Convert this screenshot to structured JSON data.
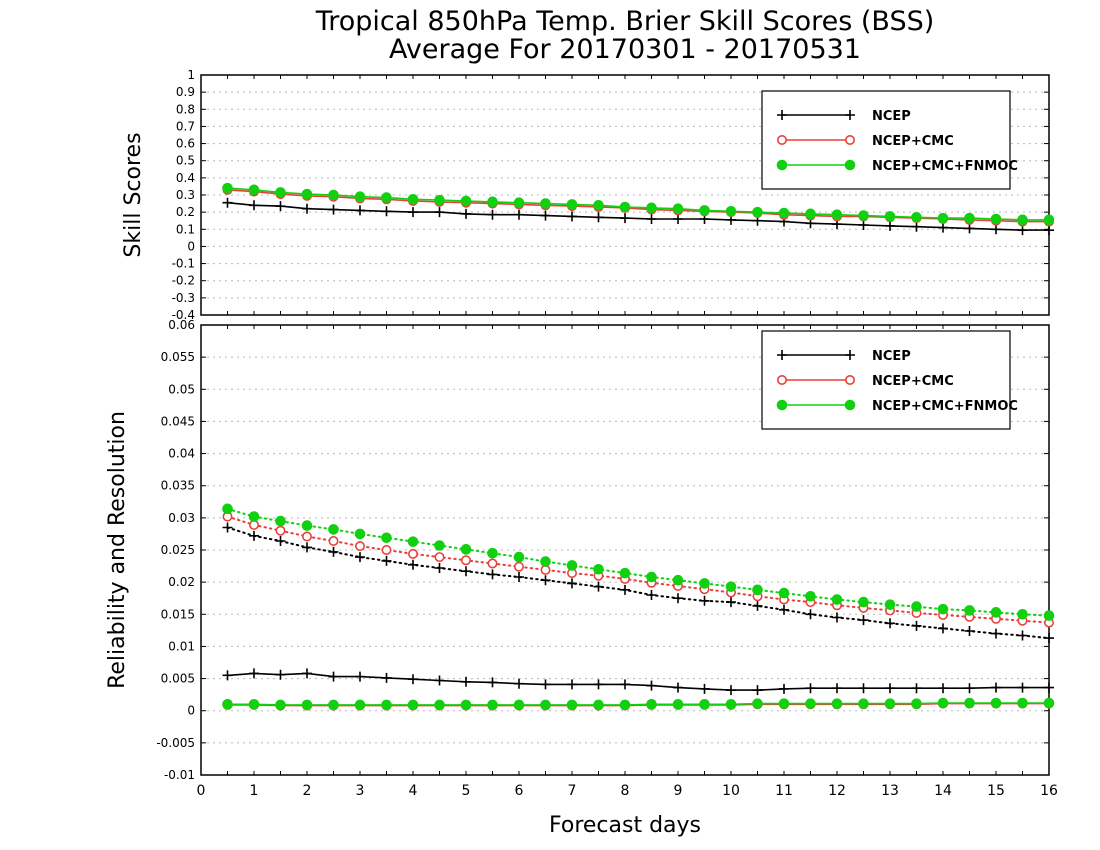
{
  "title_line1": "Tropical 850hPa Temp. Brier Skill Scores (BSS)",
  "title_line2": "Average For 20170301 - 20170531",
  "xlabel": "Forecast days",
  "series_colors": {
    "NCEP": "#000000",
    "NCEP+CMC": "#e8413a",
    "NCEP+CMC+FNMOC": "#10d010"
  },
  "chart_data": [
    {
      "type": "line",
      "ylabel": "Skill Scores",
      "ylim": [
        -0.4,
        1
      ],
      "xlim": [
        0,
        16
      ],
      "yticks": [
        "1",
        "0.9",
        "0.8",
        "0.7",
        "0.6",
        "0.5",
        "0.4",
        "0.3",
        "0.2",
        "0.1",
        "0",
        "-0.1",
        "-0.2",
        "-0.3",
        "-0.4"
      ],
      "ytick_values": [
        1,
        0.9,
        0.8,
        0.7,
        0.6,
        0.5,
        0.4,
        0.3,
        0.2,
        0.1,
        0,
        -0.1,
        -0.2,
        -0.3,
        -0.4
      ],
      "grid": true,
      "legend_position": "top-right",
      "x": [
        0.5,
        1.0,
        1.5,
        2.0,
        2.5,
        3.0,
        3.5,
        4.0,
        4.5,
        5.0,
        5.5,
        6.0,
        6.5,
        7.0,
        7.5,
        8.0,
        8.5,
        9.0,
        9.5,
        10.0,
        10.5,
        11.0,
        11.5,
        12.0,
        12.5,
        13.0,
        13.5,
        14.0,
        14.5,
        15.0,
        15.5,
        16.0
      ],
      "series": [
        {
          "name": "NCEP",
          "marker": "plus",
          "style": "solid",
          "values": [
            0.255,
            0.24,
            0.235,
            0.22,
            0.215,
            0.21,
            0.205,
            0.2,
            0.2,
            0.19,
            0.185,
            0.185,
            0.18,
            0.175,
            0.17,
            0.165,
            0.16,
            0.16,
            0.16,
            0.155,
            0.15,
            0.145,
            0.135,
            0.13,
            0.125,
            0.12,
            0.115,
            0.11,
            0.105,
            0.1,
            0.095,
            0.095
          ]
        },
        {
          "name": "NCEP+CMC",
          "marker": "open-circle",
          "style": "solid",
          "values": [
            0.33,
            0.32,
            0.305,
            0.295,
            0.29,
            0.28,
            0.275,
            0.265,
            0.26,
            0.255,
            0.25,
            0.245,
            0.24,
            0.235,
            0.23,
            0.225,
            0.215,
            0.21,
            0.205,
            0.2,
            0.195,
            0.185,
            0.18,
            0.175,
            0.175,
            0.17,
            0.165,
            0.16,
            0.155,
            0.15,
            0.145,
            0.145
          ]
        },
        {
          "name": "NCEP+CMC+FNMOC",
          "marker": "filled-circle",
          "style": "solid",
          "values": [
            0.34,
            0.33,
            0.315,
            0.305,
            0.3,
            0.29,
            0.285,
            0.275,
            0.27,
            0.265,
            0.26,
            0.255,
            0.25,
            0.245,
            0.24,
            0.23,
            0.225,
            0.22,
            0.21,
            0.205,
            0.2,
            0.195,
            0.19,
            0.185,
            0.18,
            0.175,
            0.17,
            0.165,
            0.165,
            0.16,
            0.155,
            0.155
          ]
        }
      ]
    },
    {
      "type": "line",
      "ylabel": "Reliability and Resolution",
      "ylim": [
        -0.01,
        0.06
      ],
      "xlim": [
        0,
        16
      ],
      "yticks": [
        "0.06",
        "0.055",
        "0.05",
        "0.045",
        "0.04",
        "0.035",
        "0.03",
        "0.025",
        "0.02",
        "0.015",
        "0.01",
        "0.005",
        "0",
        "-0.005",
        "-0.01"
      ],
      "ytick_values": [
        0.06,
        0.055,
        0.05,
        0.045,
        0.04,
        0.035,
        0.03,
        0.025,
        0.02,
        0.015,
        0.01,
        0.005,
        0,
        -0.005,
        -0.01
      ],
      "xticks": [
        "0",
        "1",
        "2",
        "3",
        "4",
        "5",
        "6",
        "7",
        "8",
        "9",
        "10",
        "11",
        "12",
        "13",
        "14",
        "15",
        "16"
      ],
      "xtick_values": [
        0,
        1,
        2,
        3,
        4,
        5,
        6,
        7,
        8,
        9,
        10,
        11,
        12,
        13,
        14,
        15,
        16
      ],
      "grid": true,
      "legend_position": "top-right",
      "x": [
        0.5,
        1.0,
        1.5,
        2.0,
        2.5,
        3.0,
        3.5,
        4.0,
        4.5,
        5.0,
        5.5,
        6.0,
        6.5,
        7.0,
        7.5,
        8.0,
        8.5,
        9.0,
        9.5,
        10.0,
        10.5,
        11.0,
        11.5,
        12.0,
        12.5,
        13.0,
        13.5,
        14.0,
        14.5,
        15.0,
        15.5,
        16.0
      ],
      "series": [
        {
          "name": "NCEP",
          "group": "reliability",
          "marker": "plus",
          "style": "dotted",
          "values": [
            0.0285,
            0.0272,
            0.0264,
            0.0254,
            0.0247,
            0.0239,
            0.0233,
            0.0227,
            0.0222,
            0.0217,
            0.0212,
            0.0208,
            0.0203,
            0.0198,
            0.0193,
            0.0188,
            0.018,
            0.0175,
            0.0171,
            0.0169,
            0.0163,
            0.0157,
            0.015,
            0.0145,
            0.0141,
            0.0136,
            0.0132,
            0.0128,
            0.0124,
            0.012,
            0.0117,
            0.0113
          ]
        },
        {
          "name": "NCEP+CMC",
          "group": "reliability",
          "marker": "open-circle",
          "style": "dotted",
          "values": [
            0.0302,
            0.0289,
            0.028,
            0.0271,
            0.0264,
            0.0256,
            0.025,
            0.0244,
            0.0239,
            0.0234,
            0.0229,
            0.0224,
            0.0219,
            0.0214,
            0.021,
            0.0205,
            0.0199,
            0.0194,
            0.0189,
            0.0184,
            0.0178,
            0.0173,
            0.0169,
            0.0164,
            0.016,
            0.0156,
            0.0152,
            0.0149,
            0.0146,
            0.0143,
            0.014,
            0.0137
          ]
        },
        {
          "name": "NCEP+CMC+FNMOC",
          "group": "reliability",
          "marker": "filled-circle",
          "style": "dotted",
          "values": [
            0.0314,
            0.0302,
            0.0295,
            0.0288,
            0.0282,
            0.0275,
            0.0269,
            0.0263,
            0.0257,
            0.0251,
            0.0245,
            0.0239,
            0.0232,
            0.0226,
            0.022,
            0.0214,
            0.0208,
            0.0203,
            0.0198,
            0.0193,
            0.0188,
            0.0183,
            0.0178,
            0.0173,
            0.0169,
            0.0165,
            0.0162,
            0.0158,
            0.0156,
            0.0153,
            0.015,
            0.0148
          ]
        },
        {
          "name": "NCEP",
          "group": "resolution",
          "marker": "plus",
          "style": "solid",
          "values": [
            0.0055,
            0.0058,
            0.0056,
            0.0058,
            0.0053,
            0.0053,
            0.0051,
            0.0049,
            0.0047,
            0.0045,
            0.0044,
            0.0042,
            0.0041,
            0.0041,
            0.0041,
            0.0041,
            0.0039,
            0.0036,
            0.0034,
            0.0032,
            0.0032,
            0.0034,
            0.0035,
            0.0035,
            0.0035,
            0.0035,
            0.0035,
            0.0035,
            0.0035,
            0.0036,
            0.0036,
            0.0036
          ]
        },
        {
          "name": "NCEP+CMC",
          "group": "resolution",
          "marker": "open-circle",
          "style": "solid",
          "values": [
            0.0009,
            0.0009,
            0.0008,
            0.0008,
            0.0008,
            0.0008,
            0.0008,
            0.0008,
            0.0008,
            0.0008,
            0.0008,
            0.0008,
            0.0008,
            0.0008,
            0.0008,
            0.0008,
            0.0009,
            0.0009,
            0.0009,
            0.0009,
            0.001,
            0.001,
            0.001,
            0.001,
            0.001,
            0.001,
            0.001,
            0.0011,
            0.0011,
            0.0011,
            0.0011,
            0.0011
          ]
        },
        {
          "name": "NCEP+CMC+FNMOC",
          "group": "resolution",
          "marker": "filled-circle",
          "style": "solid",
          "values": [
            0.001,
            0.001,
            0.0009,
            0.0009,
            0.0009,
            0.0009,
            0.0009,
            0.0009,
            0.0009,
            0.0009,
            0.0009,
            0.0009,
            0.0009,
            0.0009,
            0.0009,
            0.0009,
            0.001,
            0.001,
            0.001,
            0.001,
            0.0011,
            0.0011,
            0.0011,
            0.0011,
            0.0011,
            0.0011,
            0.0011,
            0.0012,
            0.0012,
            0.0012,
            0.0012,
            0.0012
          ]
        }
      ]
    }
  ]
}
